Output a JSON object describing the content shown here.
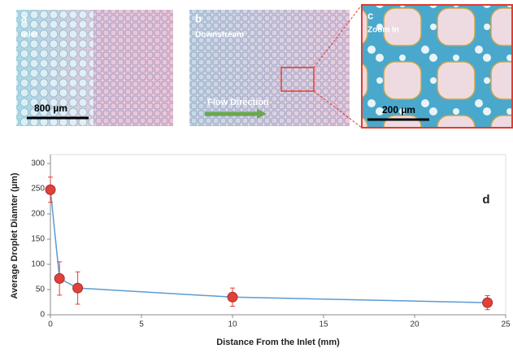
{
  "panels": [
    {
      "label": "a",
      "caption": "Inlet",
      "scale_bar": "800 µm"
    },
    {
      "label": "b",
      "caption": "Downstream",
      "arrow": "Flow Direction"
    },
    {
      "label": "c",
      "caption": "Zoom In",
      "scale_bar": "200 µm"
    }
  ],
  "chart_data": {
    "type": "line",
    "panel_label": "d",
    "x_label": "Distance From the Inlet (mm)",
    "y_label": "Average Droplet Diamter (µm)",
    "x": [
      0,
      0.5,
      1.5,
      10,
      24
    ],
    "series": [
      {
        "color": "#5b9bd5",
        "marker_color": "#e0413a",
        "values": [
          248,
          72,
          53,
          35,
          24
        ],
        "errors": [
          25,
          33,
          32,
          18,
          14
        ]
      }
    ],
    "xlim": [
      0,
      25
    ],
    "xticks": [
      0,
      5,
      10,
      15,
      20,
      25
    ],
    "ylim": [
      0,
      300
    ],
    "yticks": [
      0,
      50,
      100,
      150,
      200,
      250,
      300
    ]
  }
}
